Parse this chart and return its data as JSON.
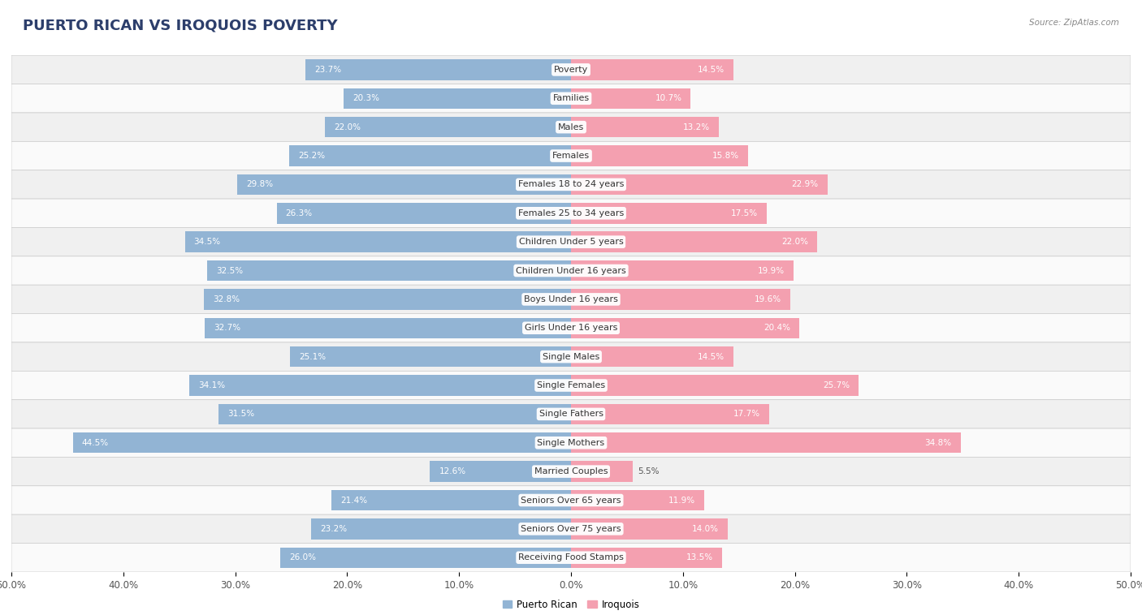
{
  "title": "PUERTO RICAN VS IROQUOIS POVERTY",
  "source": "Source: ZipAtlas.com",
  "categories": [
    "Poverty",
    "Families",
    "Males",
    "Females",
    "Females 18 to 24 years",
    "Females 25 to 34 years",
    "Children Under 5 years",
    "Children Under 16 years",
    "Boys Under 16 years",
    "Girls Under 16 years",
    "Single Males",
    "Single Females",
    "Single Fathers",
    "Single Mothers",
    "Married Couples",
    "Seniors Over 65 years",
    "Seniors Over 75 years",
    "Receiving Food Stamps"
  ],
  "puerto_rican": [
    23.7,
    20.3,
    22.0,
    25.2,
    29.8,
    26.3,
    34.5,
    32.5,
    32.8,
    32.7,
    25.1,
    34.1,
    31.5,
    44.5,
    12.6,
    21.4,
    23.2,
    26.0
  ],
  "iroquois": [
    14.5,
    10.7,
    13.2,
    15.8,
    22.9,
    17.5,
    22.0,
    19.9,
    19.6,
    20.4,
    14.5,
    25.7,
    17.7,
    34.8,
    5.5,
    11.9,
    14.0,
    13.5
  ],
  "blue_color": "#92b4d4",
  "pink_color": "#f4a0b0",
  "label_blue": "Puerto Rican",
  "label_pink": "Iroquois",
  "axis_max": 50.0,
  "bg_color": "#ffffff",
  "row_bg_odd": "#f0f0f0",
  "row_bg_even": "#fafafa",
  "bar_height": 0.72,
  "title_fontsize": 13,
  "label_fontsize": 8.0,
  "value_fontsize": 7.5,
  "tick_fontsize": 8.5,
  "source_fontsize": 7.5,
  "title_color": "#2c3e6b",
  "source_color": "#888888",
  "value_color_inside": "#ffffff",
  "value_color_outside": "#555555",
  "cat_label_color": "#333333"
}
